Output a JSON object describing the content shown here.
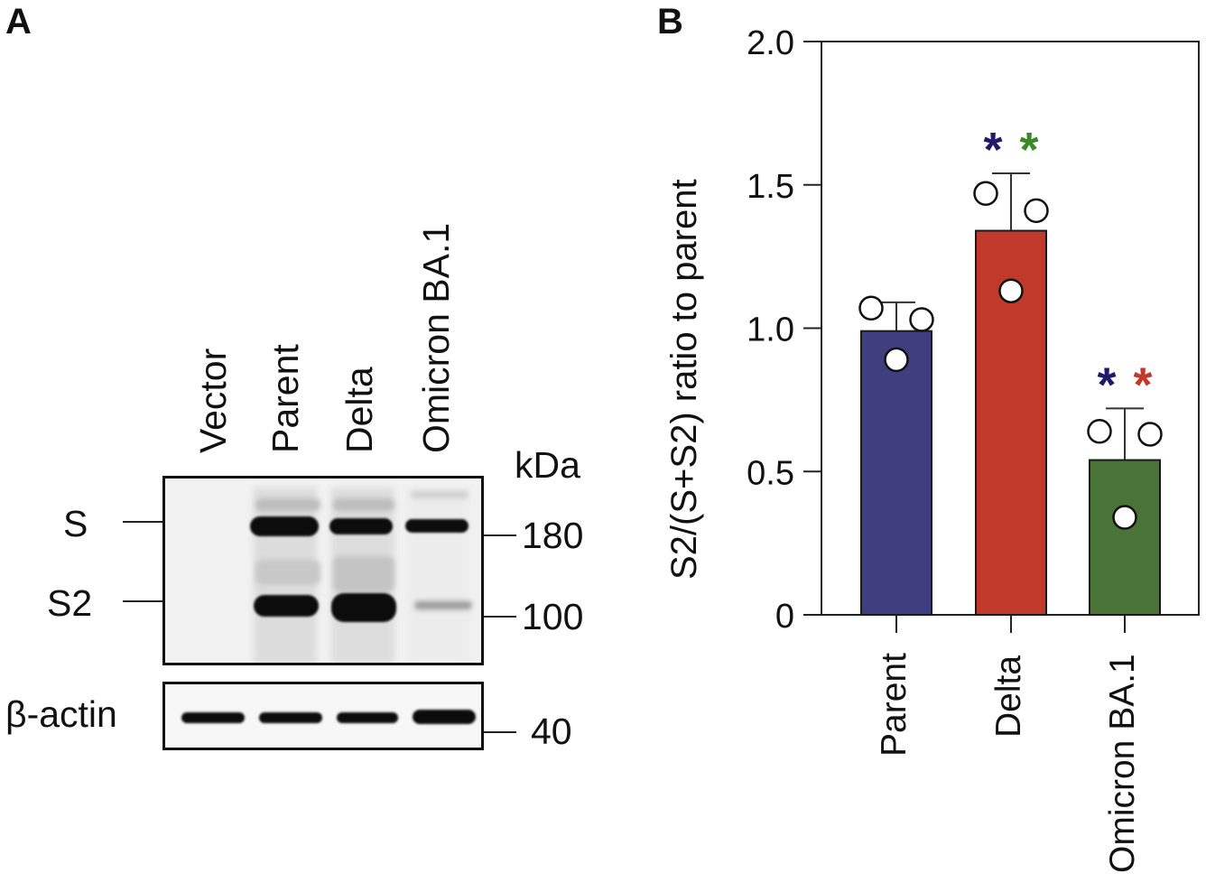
{
  "panel_a": {
    "letter": "A",
    "lanes": [
      "Vector",
      "Parent",
      "Delta",
      "Omicron BA.1"
    ],
    "band_labels": {
      "s": "S",
      "s2": "S2",
      "actin": "β-actin"
    },
    "marker_unit": "kDa",
    "markers": [
      "180",
      "100",
      "40"
    ]
  },
  "panel_b": {
    "letter": "B"
  },
  "chart_data": {
    "type": "bar",
    "title": "",
    "xlabel": "",
    "ylabel": "S2/(S+S2) ratio to parent",
    "ylim": [
      0,
      2.0
    ],
    "yticks": [
      "0",
      "0.5",
      "1.0",
      "1.5",
      "2.0"
    ],
    "categories": [
      "Parent",
      "Delta",
      "Omicron BA.1"
    ],
    "values": [
      0.99,
      1.34,
      0.54
    ],
    "error_upper": [
      1.09,
      1.54,
      0.72
    ],
    "points": [
      [
        1.07,
        1.03,
        0.89
      ],
      [
        1.47,
        1.41,
        1.13
      ],
      [
        0.64,
        0.63,
        0.34
      ]
    ],
    "colors": [
      "#3f3f80",
      "#c0392b",
      "#4a7338"
    ],
    "significance": [
      [],
      [
        {
          "symbol": "*",
          "color": "#1f1a6b"
        },
        {
          "symbol": "*",
          "color": "#3a8a2a"
        }
      ],
      [
        {
          "symbol": "*",
          "color": "#1f1a6b"
        },
        {
          "symbol": "*",
          "color": "#c0392b"
        }
      ]
    ],
    "grid": false,
    "legend": null
  }
}
